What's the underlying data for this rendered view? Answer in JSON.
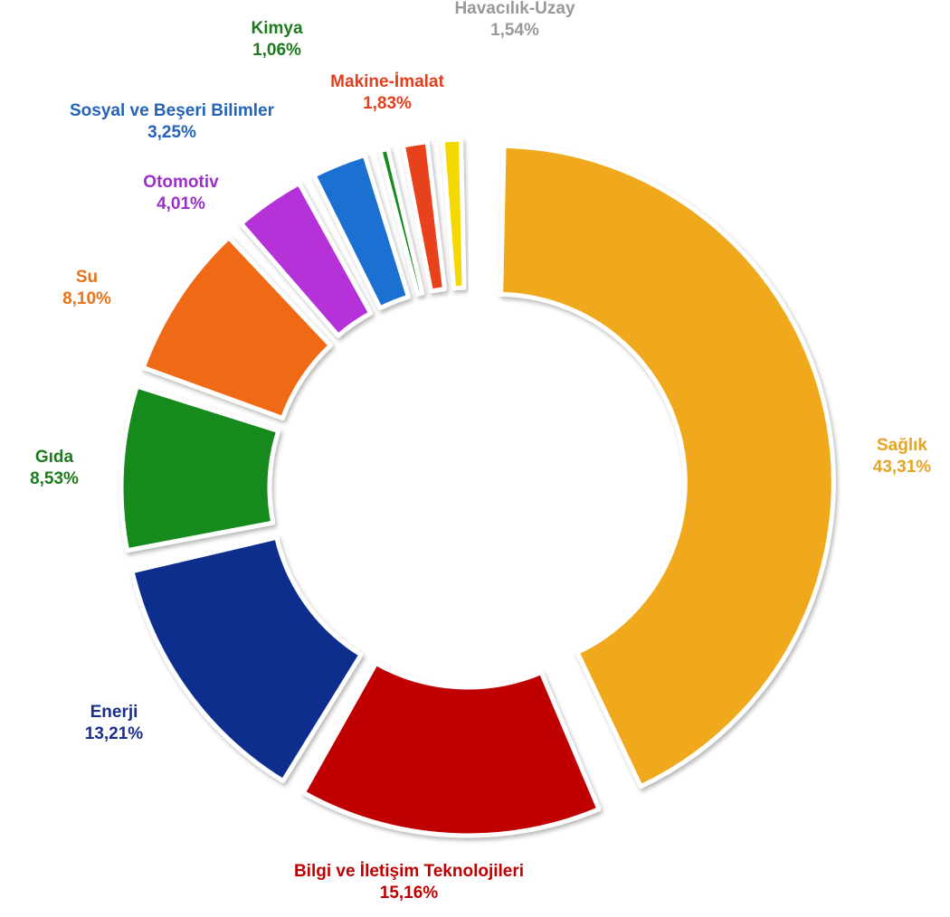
{
  "chart_data": {
    "type": "pie",
    "style": "donut-exploded",
    "title": "",
    "unit": "%",
    "slices": [
      {
        "label": "Sağlık",
        "value": 43.31,
        "value_text": "43,31%",
        "color": "#F0A81C",
        "label_color": "#E5A524"
      },
      {
        "label": "Bilgi ve İletişim Teknolojileri",
        "value": 15.16,
        "value_text": "15,16%",
        "color": "#C00000",
        "label_color": "#C00000"
      },
      {
        "label": "Enerji",
        "value": 13.21,
        "value_text": "13,21%",
        "color": "#0E2E8C",
        "label_color": "#1A2E8A"
      },
      {
        "label": "Gıda",
        "value": 8.53,
        "value_text": "8,53%",
        "color": "#168A1A",
        "label_color": "#1F7A1F"
      },
      {
        "label": "Su",
        "value": 8.1,
        "value_text": "8,10%",
        "color": "#F06A12",
        "label_color": "#E8731A"
      },
      {
        "label": "Otomotiv",
        "value": 4.01,
        "value_text": "4,01%",
        "color": "#B433D8",
        "label_color": "#9B2FC9"
      },
      {
        "label": "Sosyal ve Beşeri Bilimler",
        "value": 3.25,
        "value_text": "3,25%",
        "color": "#1F6FD1",
        "label_color": "#2563B8"
      },
      {
        "label": "Kimya",
        "value": 1.06,
        "value_text": "1,06%",
        "color": "#168A1A",
        "label_color": "#1F7A1F"
      },
      {
        "label": "Makine-İmalat",
        "value": 1.83,
        "value_text": "1,83%",
        "color": "#E8421E",
        "label_color": "#E0401E"
      },
      {
        "label": "Havacılık-Uzay",
        "value": 1.54,
        "value_text": "1,54%",
        "color": "#F5D800",
        "label_color": "#999999"
      }
    ]
  }
}
